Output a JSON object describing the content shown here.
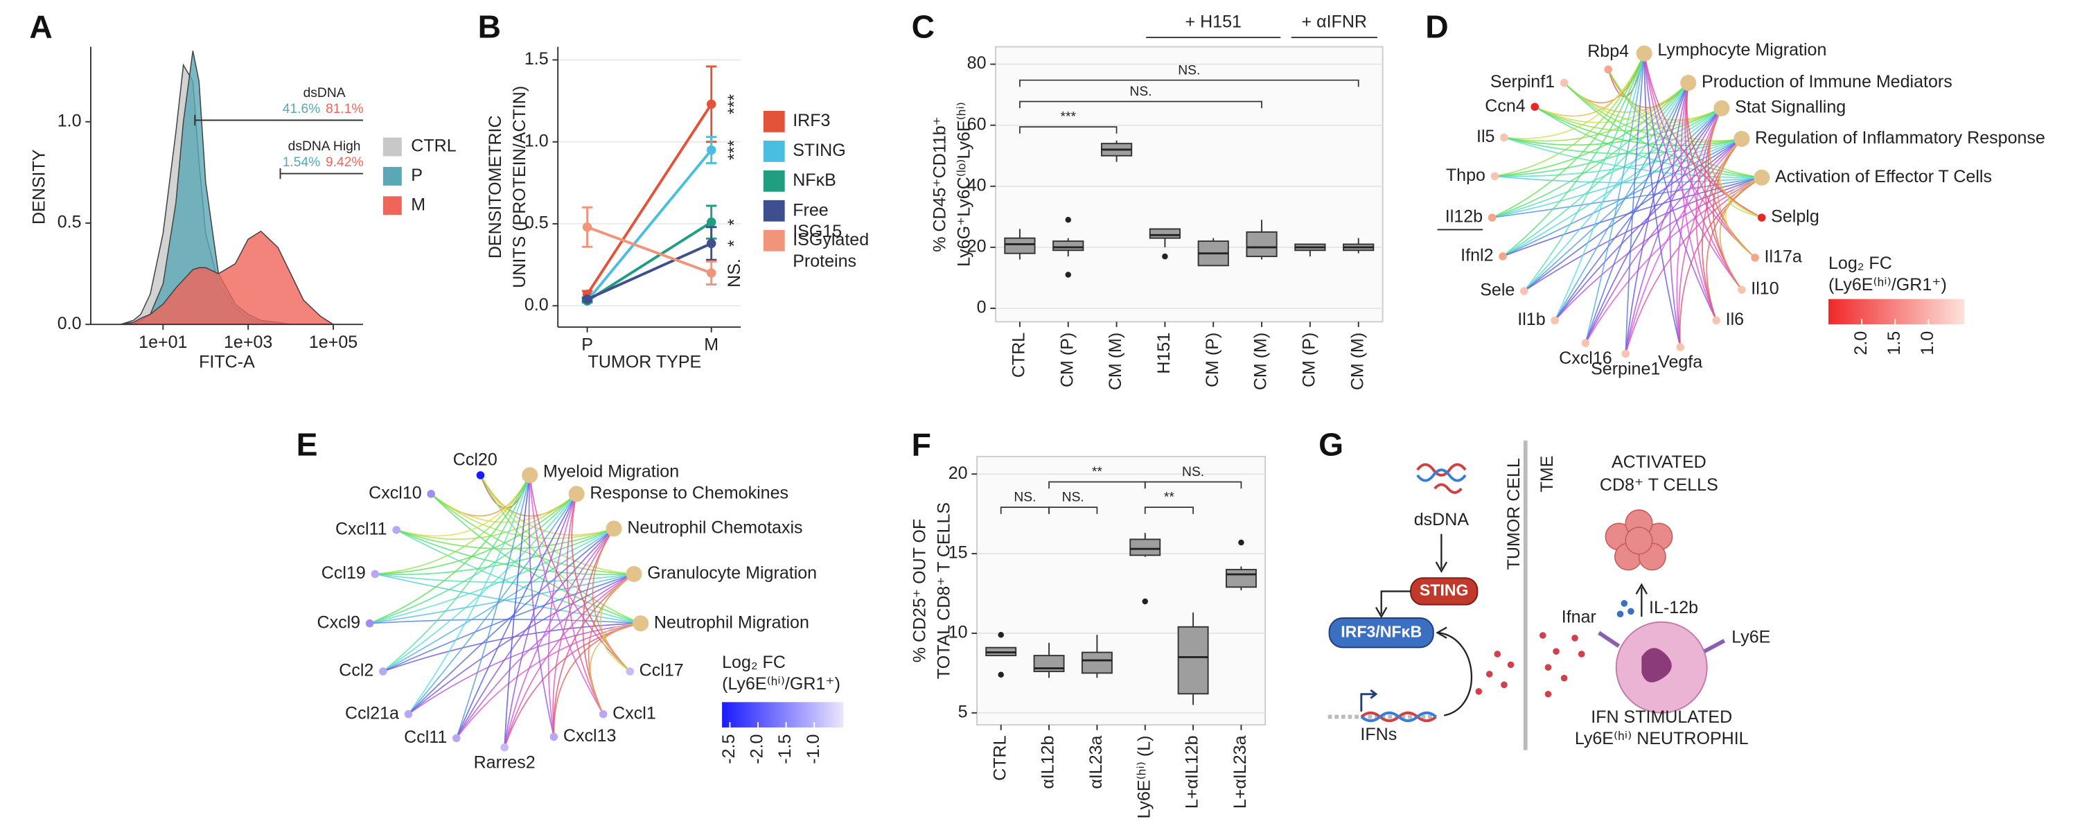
{
  "chart_data": [
    {
      "type": "density",
      "panel": "A",
      "xlabel": "FITC-A",
      "ylabel": "DENSITY",
      "x": [
        1,
        2,
        3,
        5,
        10,
        20,
        30,
        50,
        70,
        100,
        200,
        500,
        1000,
        2000,
        5000,
        10000,
        20000,
        50000,
        100000
      ],
      "series": [
        {
          "name": "CTRL",
          "color": "#c8c8c8",
          "values": [
            0,
            0.02,
            0.05,
            0.15,
            0.45,
            0.95,
            1.28,
            1.2,
            0.8,
            0.45,
            0.2,
            0.08,
            0.03,
            0.01,
            0,
            0,
            0,
            0,
            0
          ]
        },
        {
          "name": "P",
          "color": "#5aa7b5",
          "values": [
            0,
            0,
            0.02,
            0.05,
            0.2,
            0.6,
            1.0,
            1.35,
            1.2,
            0.7,
            0.25,
            0.1,
            0.05,
            0.02,
            0.01,
            0,
            0,
            0,
            0
          ]
        },
        {
          "name": "M",
          "color": "#f0655a",
          "values": [
            0,
            0.01,
            0.03,
            0.05,
            0.1,
            0.18,
            0.22,
            0.27,
            0.28,
            0.28,
            0.25,
            0.3,
            0.42,
            0.46,
            0.38,
            0.25,
            0.12,
            0.04,
            0
          ]
        }
      ],
      "xlim": [
        0.2,
        500000
      ],
      "log_x": true,
      "xticks": [
        {
          "value": 10,
          "label": "1e+01"
        },
        {
          "value": 1000,
          "label": "1e+03"
        },
        {
          "value": 100000,
          "label": "1e+05"
        }
      ],
      "ylim": [
        0,
        1.37
      ],
      "yticks": [
        {
          "value": 0,
          "label": "0.0"
        },
        {
          "value": 0.5,
          "label": "0.5"
        },
        {
          "value": 1,
          "label": "1.0"
        }
      ],
      "legend": "right",
      "gates": [
        {
          "label": "dsDNA",
          "pct_P": "41.6%",
          "pct_M": "81.1%"
        },
        {
          "label": "dsDNA High",
          "pct_P": "1.54%",
          "pct_M": "9.42%"
        }
      ]
    },
    {
      "type": "line",
      "panel": "B",
      "xlabel": "TUMOR TYPE",
      "ylabel": [
        "DENSITOMETRIC",
        "UNITS (PROTEIN/ACTIN)"
      ],
      "categories": [
        "P",
        "M"
      ],
      "series": [
        {
          "name": "IRF3",
          "color": "#e2533a",
          "values": [
            0.07,
            1.23
          ],
          "errors": [
            0.02,
            0.23
          ]
        },
        {
          "name": "STING",
          "color": "#4bbde0",
          "values": [
            0.03,
            0.95
          ],
          "errors": [
            0.01,
            0.08
          ]
        },
        {
          "name": "NFκB",
          "color": "#1f9e80",
          "values": [
            0.03,
            0.51
          ],
          "errors": [
            0.01,
            0.1
          ]
        },
        {
          "name": "Free ISG15",
          "color": "#3d4f8f",
          "values": [
            0.04,
            0.38
          ],
          "errors": [
            0.01,
            0.1
          ]
        },
        {
          "name": "ISGylated Proteins",
          "color": "#f0957a",
          "values": [
            0.48,
            0.2
          ],
          "errors": [
            0.12,
            0.07
          ]
        }
      ],
      "significance": [
        "***",
        "***",
        "*",
        "*",
        "NS."
      ],
      "ylim": [
        -0.13,
        1.58
      ],
      "yticks": [
        {
          "value": 0,
          "label": "0.0"
        },
        0.5,
        {
          "value": 1,
          "label": "1.0"
        },
        1.5
      ],
      "grid": true
    },
    {
      "type": "box",
      "panel": "C",
      "ylabel": [
        "% CD45⁺CD11b⁺",
        "Ly6G⁺Ly6C⁽ˡᵒ⁾Ly6E⁽ʰⁱ⁾"
      ],
      "categories": [
        "CTRL",
        "CM (P)",
        "CM (M)",
        "H151",
        "CM (P)",
        "CM (M)",
        "CM (P)",
        "CM (M)"
      ],
      "boxes": [
        {
          "low": 16,
          "q1": 18,
          "median": 21,
          "q3": 23,
          "high": 26
        },
        {
          "low": 17,
          "q1": 19,
          "median": 20,
          "q3": 22,
          "high": 23,
          "outliers": [
            29,
            11
          ]
        },
        {
          "low": 48,
          "q1": 50,
          "median": 52,
          "q3": 54,
          "high": 55
        },
        {
          "low": 20,
          "q1": 23,
          "median": 24,
          "q3": 26,
          "high": 26,
          "outliers": [
            17
          ]
        },
        {
          "low": 14,
          "q1": 14,
          "median": 18,
          "q3": 22,
          "high": 23
        },
        {
          "low": 16,
          "q1": 17,
          "median": 20,
          "q3": 25,
          "high": 29
        },
        {
          "low": 17,
          "q1": 19,
          "median": 20,
          "q3": 21,
          "high": 21
        },
        {
          "low": 18,
          "q1": 19,
          "median": 20,
          "q3": 21,
          "high": 23
        }
      ],
      "color": "#9e9e9e",
      "groups": [
        "+ H151",
        "+ αIFNR"
      ],
      "significance": [
        "***",
        "NS.",
        "NS."
      ],
      "ylim": [
        -4.4,
        85.7
      ],
      "yticks": [
        0,
        20,
        40,
        60,
        80
      ],
      "grid": true
    },
    {
      "type": "box",
      "panel": "F",
      "ylabel": [
        "% CD25⁺ OUT OF",
        "TOTAL CD8⁺ T CELLS"
      ],
      "categories": [
        "CTRL",
        "αIL12b",
        "αIL23a",
        "Ly6E⁽ʰⁱ⁾ (L)",
        "L+αIL12b",
        "L+αIL23a"
      ],
      "boxes": [
        {
          "low": 8.6,
          "q1": 8.6,
          "median": 8.8,
          "q3": 9.1,
          "high": 9.1,
          "outliers": [
            9.9,
            7.4
          ]
        },
        {
          "low": 7.2,
          "q1": 7.6,
          "median": 7.8,
          "q3": 8.6,
          "high": 9.4
        },
        {
          "low": 7.2,
          "q1": 7.5,
          "median": 8.3,
          "q3": 8.8,
          "high": 9.9
        },
        {
          "low": 14.8,
          "q1": 14.9,
          "median": 15.3,
          "q3": 15.9,
          "high": 16.3,
          "outliers": [
            12
          ]
        },
        {
          "low": 5.5,
          "q1": 6.2,
          "median": 8.5,
          "q3": 10.4,
          "high": 11.3
        },
        {
          "low": 12.7,
          "q1": 12.9,
          "median": 13.7,
          "q3": 14.0,
          "high": 14.2,
          "outliers": [
            15.7
          ]
        }
      ],
      "color": "#9e9e9e",
      "significance": [
        "NS.",
        "NS.",
        "**",
        "NS.",
        "**"
      ],
      "ylim": [
        4.25,
        21.1
      ],
      "yticks": [
        5,
        10,
        15,
        20
      ],
      "grid": true
    }
  ],
  "diagrams": {
    "D": {
      "panel": "D",
      "pathways": [
        "Lymphocyte Migration",
        "Production of Immune Mediators",
        "Stat Signalling",
        "Regulation of Inflammatory Response",
        "Activation of Effector T Cells"
      ],
      "genes": [
        {
          "label": "Rbp4",
          "color": "#f6a58e"
        },
        {
          "label": "Serpinf1",
          "color": "#f8c3b0"
        },
        {
          "label": "Ccn4",
          "color": "#e8262a"
        },
        {
          "label": "Il5",
          "color": "#f8c3b0"
        },
        {
          "label": "Thpo",
          "color": "#f8c3b0"
        },
        {
          "label": "Il12b",
          "color": "#f4a58a",
          "underlined": true
        },
        {
          "label": "Ifnl2",
          "color": "#f4a58a"
        },
        {
          "label": "Sele",
          "color": "#f8c3b0"
        },
        {
          "label": "Il1b",
          "color": "#f8c3b0"
        },
        {
          "label": "Cxcl16",
          "color": "#f8c3b0"
        },
        {
          "label": "Serpine1",
          "color": "#f8c3b0"
        },
        {
          "label": "Vegfa",
          "color": "#f8c3b0"
        },
        {
          "label": "Il6",
          "color": "#f8c3b0"
        },
        {
          "label": "Il10",
          "color": "#f8c3b0"
        },
        {
          "label": "Il17a",
          "color": "#f4a58a"
        },
        {
          "label": "Selplg",
          "color": "#e8262a"
        }
      ],
      "legend_title": [
        "Log₂ FC",
        "(Ly6E⁽ʰⁱ⁾/GR1⁺)"
      ],
      "colorbar": {
        "colors": [
          "#f0282a",
          "#fde3dc"
        ],
        "lim": [
          2.5,
          0.46
        ],
        "ticks": [
          {
            "value": 2,
            "label": "2.0"
          },
          1.5,
          {
            "value": 1,
            "label": "1.0"
          }
        ]
      }
    },
    "E": {
      "panel": "E",
      "pathways": [
        "Myeloid Migration",
        "Response to Chemokines",
        "Neutrophil Chemotaxis",
        "Granulocyte Migration",
        "Neutrophil Migration"
      ],
      "genes": [
        {
          "label": "Ccl20",
          "color": "#1a1aff"
        },
        {
          "label": "Cxcl10",
          "color": "#a28ef2"
        },
        {
          "label": "Cxcl11",
          "color": "#b9a6f5"
        },
        {
          "label": "Ccl19",
          "color": "#b9a6f5"
        },
        {
          "label": "Cxcl9",
          "color": "#a28ef2"
        },
        {
          "label": "Ccl2",
          "color": "#b9a6f5"
        },
        {
          "label": "Ccl21a",
          "color": "#b9a6f5"
        },
        {
          "label": "Ccl11",
          "color": "#b9a6f5"
        },
        {
          "label": "Rarres2",
          "color": "#c8baf7"
        },
        {
          "label": "Cxcl13",
          "color": "#b9a6f5"
        },
        {
          "label": "Cxcl1",
          "color": "#b9a6f5"
        },
        {
          "label": "Ccl17",
          "color": "#c8baf7"
        }
      ],
      "legend_title": [
        "Log₂ FC",
        "(Ly6E⁽ʰⁱ⁾/GR1⁺)"
      ],
      "colorbar": {
        "colors": [
          "#1a1aff",
          "#ece6fd"
        ],
        "lim": [
          -2.64,
          -0.48
        ],
        "ticks": [
          -2.5,
          {
            "value": -2,
            "label": "-2.0"
          },
          -1.5,
          {
            "value": -1,
            "label": "-1.0"
          }
        ]
      }
    },
    "G": {
      "panel": "G",
      "sections": [
        "TUMOR CELL",
        "TME"
      ],
      "dsdna": "dsDNA",
      "sting": "STING",
      "irf3": "IRF3/NFκB",
      "ifns": "IFNs",
      "tcell": [
        "ACTIVATED",
        "CD8⁺ T CELLS"
      ],
      "il12b": "IL-12b",
      "ifnar": "Ifnar",
      "ly6e": "Ly6E",
      "neutrophil": [
        "IFN STIMULATED",
        "Ly6E⁽ʰⁱ⁾ NEUTROPHIL"
      ]
    }
  }
}
